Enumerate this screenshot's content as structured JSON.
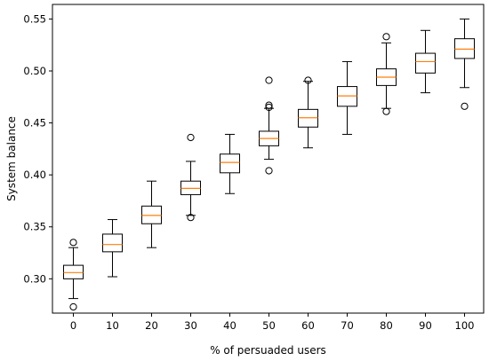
{
  "chart_data": {
    "type": "boxplot",
    "xlabel": "% of persuaded users",
    "ylabel": "System balance",
    "ylim": [
      0.267,
      0.564
    ],
    "yticks": [
      0.3,
      0.35,
      0.4,
      0.45,
      0.5,
      0.55
    ],
    "ytick_labels": [
      "0.30",
      "0.35",
      "0.40",
      "0.45",
      "0.50",
      "0.55"
    ],
    "categories": [
      "0",
      "10",
      "20",
      "30",
      "40",
      "50",
      "60",
      "70",
      "80",
      "90",
      "100"
    ],
    "grid": false,
    "colors": {
      "box": "#000000",
      "median": "#ff7f0e",
      "flier": "#000000"
    },
    "boxes": [
      {
        "x": "0",
        "whislo": 0.281,
        "q1": 0.3,
        "med": 0.306,
        "q3": 0.313,
        "whishi": 0.33,
        "fliers": [
          0.335,
          0.273
        ]
      },
      {
        "x": "10",
        "whislo": 0.302,
        "q1": 0.326,
        "med": 0.333,
        "q3": 0.343,
        "whishi": 0.357,
        "fliers": []
      },
      {
        "x": "20",
        "whislo": 0.33,
        "q1": 0.353,
        "med": 0.361,
        "q3": 0.37,
        "whishi": 0.394,
        "fliers": []
      },
      {
        "x": "30",
        "whislo": 0.361,
        "q1": 0.381,
        "med": 0.387,
        "q3": 0.394,
        "whishi": 0.413,
        "fliers": [
          0.436,
          0.359
        ]
      },
      {
        "x": "40",
        "whislo": 0.382,
        "q1": 0.402,
        "med": 0.412,
        "q3": 0.42,
        "whishi": 0.439,
        "fliers": []
      },
      {
        "x": "50",
        "whislo": 0.415,
        "q1": 0.428,
        "med": 0.435,
        "q3": 0.442,
        "whishi": 0.464,
        "fliers": [
          0.491,
          0.467,
          0.465,
          0.404
        ]
      },
      {
        "x": "60",
        "whislo": 0.426,
        "q1": 0.446,
        "med": 0.455,
        "q3": 0.463,
        "whishi": 0.49,
        "fliers": [
          0.491
        ]
      },
      {
        "x": "70",
        "whislo": 0.439,
        "q1": 0.466,
        "med": 0.476,
        "q3": 0.485,
        "whishi": 0.509,
        "fliers": []
      },
      {
        "x": "80",
        "whislo": 0.464,
        "q1": 0.486,
        "med": 0.494,
        "q3": 0.502,
        "whishi": 0.527,
        "fliers": [
          0.533,
          0.461
        ]
      },
      {
        "x": "90",
        "whislo": 0.479,
        "q1": 0.498,
        "med": 0.509,
        "q3": 0.517,
        "whishi": 0.539,
        "fliers": []
      },
      {
        "x": "100",
        "whislo": 0.484,
        "q1": 0.512,
        "med": 0.521,
        "q3": 0.531,
        "whishi": 0.55,
        "fliers": [
          0.466
        ]
      }
    ]
  }
}
